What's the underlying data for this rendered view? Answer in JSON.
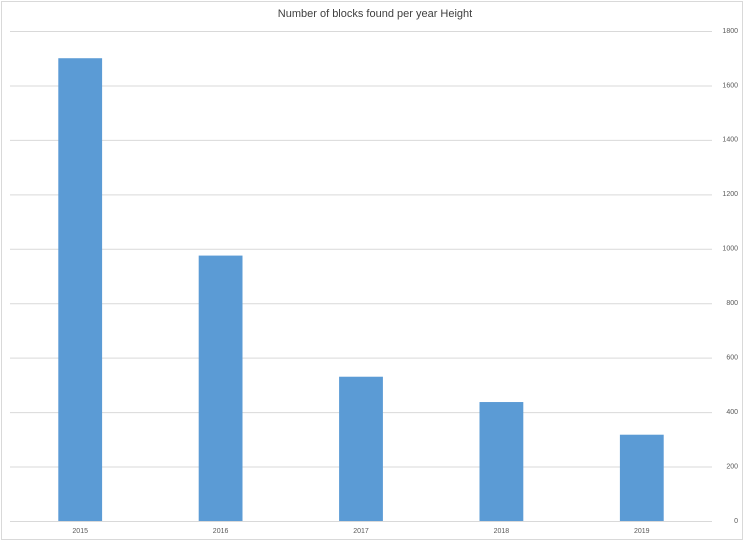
{
  "chart_data": {
    "type": "bar",
    "title": "Number of blocks found per year Height",
    "categories": [
      "2015",
      "2016",
      "2017",
      "2018",
      "2019"
    ],
    "values": [
      1700,
      975,
      530,
      437,
      317
    ],
    "color": "#5b9bd5",
    "ylim": [
      0,
      1800
    ],
    "yticks": [
      0,
      200,
      400,
      600,
      800,
      1000,
      1200,
      1400,
      1600,
      1800
    ],
    "grid": true,
    "y_axis_side": "right"
  }
}
